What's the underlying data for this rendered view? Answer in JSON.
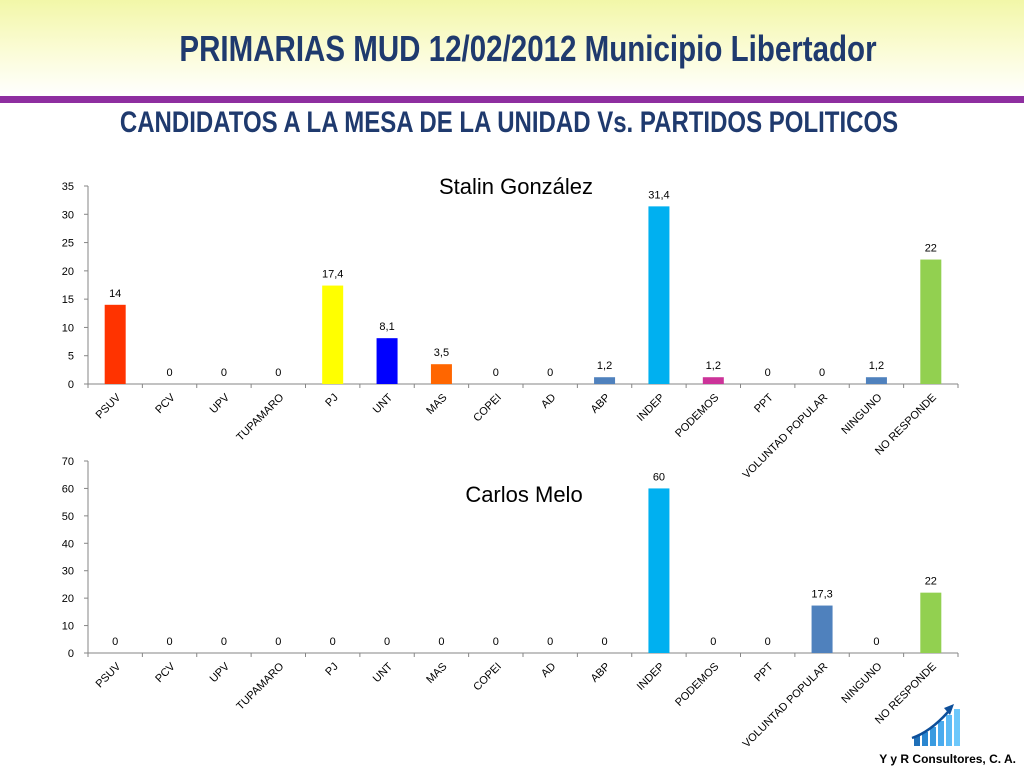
{
  "header": {
    "title": "PRIMARIAS MUD 12/02/2012  Municipio Libertador",
    "subtitle": "CANDIDATOS A LA MESA DE LA UNIDAD Vs. PARTIDOS POLITICOS"
  },
  "footer": {
    "company": "Y y R Consultores, C. A."
  },
  "chart_data": [
    {
      "type": "bar",
      "title": "Stalin González",
      "categories": [
        "PSUV",
        "PCV",
        "UPV",
        "TUPAMARO",
        "PJ",
        "UNT",
        "MAS",
        "COPEI",
        "AD",
        "ABP",
        "INDEP",
        "PODEMOS",
        "PPT",
        "VOLUNTAD POPULAR",
        "NINGUNO",
        "NO RESPONDE"
      ],
      "values": [
        14,
        0,
        0,
        0,
        17.4,
        8.1,
        3.5,
        0,
        0,
        1.2,
        31.4,
        1.2,
        0,
        0,
        1.2,
        22
      ],
      "data_labels": [
        "14",
        "0",
        "0",
        "0",
        "17,4",
        "8,1",
        "3,5",
        "0",
        "0",
        "1,2",
        "31,4",
        "1,2",
        "0",
        "0",
        "1,2",
        "22"
      ],
      "colors": [
        "#ff3300",
        "#4f81bd",
        "#4f81bd",
        "#4f81bd",
        "#ffff00",
        "#0000ff",
        "#ff6600",
        "#4f81bd",
        "#4f81bd",
        "#4f81bd",
        "#00b0f0",
        "#cc3399",
        "#4f81bd",
        "#4f81bd",
        "#4f81bd",
        "#92d050"
      ],
      "yticks": [
        0,
        5,
        10,
        15,
        20,
        25,
        30,
        35
      ],
      "ylim": [
        0,
        35
      ],
      "xlabel": "",
      "ylabel": "",
      "grid": false
    },
    {
      "type": "bar",
      "title": "Carlos Melo",
      "categories": [
        "PSUV",
        "PCV",
        "UPV",
        "TUPAMARO",
        "PJ",
        "UNT",
        "MAS",
        "COPEI",
        "AD",
        "ABP",
        "INDEP",
        "PODEMOS",
        "PPT",
        "VOLUNTAD POPULAR",
        "NINGUNO",
        "NO RESPONDE"
      ],
      "values": [
        0,
        0,
        0,
        0,
        0,
        0,
        0,
        0,
        0,
        0,
        60,
        0,
        0,
        17.3,
        0,
        22
      ],
      "data_labels": [
        "0",
        "0",
        "0",
        "0",
        "0",
        "0",
        "0",
        "0",
        "0",
        "0",
        "60",
        "0",
        "0",
        "17,3",
        "0",
        "22"
      ],
      "colors": [
        "#4f81bd",
        "#4f81bd",
        "#4f81bd",
        "#4f81bd",
        "#4f81bd",
        "#4f81bd",
        "#4f81bd",
        "#4f81bd",
        "#4f81bd",
        "#4f81bd",
        "#00b0f0",
        "#4f81bd",
        "#4f81bd",
        "#4f81bd",
        "#4f81bd",
        "#92d050"
      ],
      "yticks": [
        0,
        10,
        20,
        30,
        40,
        50,
        60,
        70
      ],
      "ylim": [
        0,
        70
      ],
      "xlabel": "",
      "ylabel": "",
      "grid": false
    }
  ]
}
